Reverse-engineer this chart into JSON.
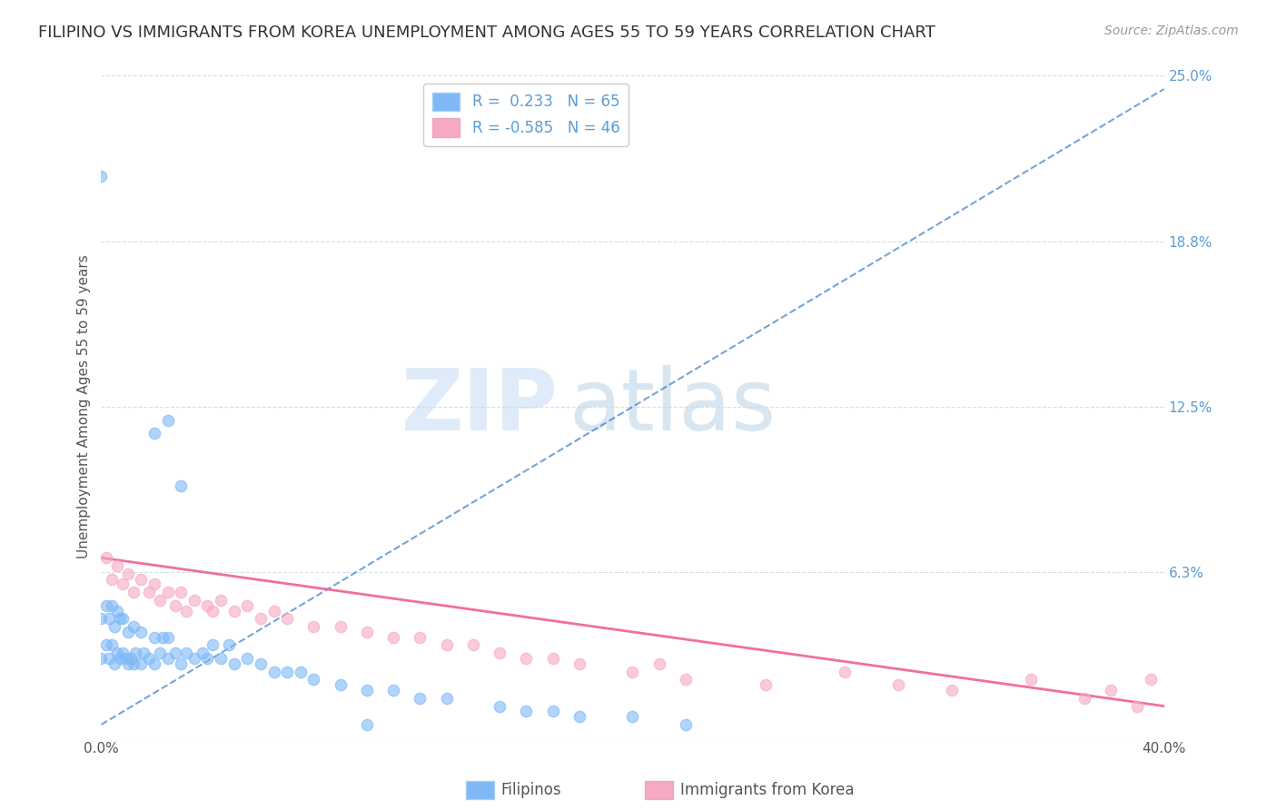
{
  "title": "FILIPINO VS IMMIGRANTS FROM KOREA UNEMPLOYMENT AMONG AGES 55 TO 59 YEARS CORRELATION CHART",
  "source": "Source: ZipAtlas.com",
  "ylabel": "Unemployment Among Ages 55 to 59 years",
  "xlim": [
    0.0,
    0.4
  ],
  "ylim": [
    0.0,
    0.25
  ],
  "yticks": [
    0.0,
    0.0625,
    0.125,
    0.1875,
    0.25
  ],
  "ytick_labels": [
    "",
    "6.3%",
    "12.5%",
    "18.8%",
    "25.0%"
  ],
  "xtick_labels_show": [
    "0.0%",
    "40.0%"
  ],
  "filipino_color": "#7eb8f7",
  "korean_color": "#f7a8c4",
  "trendline_color_filipino": "#7eb8f7",
  "trendline_color_korean": "#f06090",
  "R_filipino": 0.233,
  "N_filipino": 65,
  "R_korean": -0.585,
  "N_korean": 46,
  "watermark_zip": "ZIP",
  "watermark_atlas": "atlas",
  "legend_labels": [
    "Filipinos",
    "Immigrants from Korea"
  ],
  "background_color": "#ffffff",
  "grid_color": "#c8d8e8",
  "title_color": "#333333",
  "source_color": "#999999",
  "ytick_color": "#5b9bd5",
  "title_fontsize": 13,
  "axis_label_fontsize": 11,
  "tick_fontsize": 11,
  "legend_fontsize": 12,
  "fil_trendline_x0": 0.0,
  "fil_trendline_y0": 0.005,
  "fil_trendline_x1": 0.4,
  "fil_trendline_y1": 0.245,
  "kor_trendline_x0": 0.0,
  "kor_trendline_y0": 0.068,
  "kor_trendline_x1": 0.4,
  "kor_trendline_y1": 0.012,
  "filipinos_x": [
    0.0,
    0.0,
    0.002,
    0.002,
    0.003,
    0.003,
    0.004,
    0.004,
    0.005,
    0.005,
    0.006,
    0.006,
    0.007,
    0.007,
    0.008,
    0.008,
    0.009,
    0.01,
    0.01,
    0.011,
    0.012,
    0.012,
    0.013,
    0.015,
    0.015,
    0.016,
    0.018,
    0.02,
    0.02,
    0.022,
    0.023,
    0.025,
    0.025,
    0.028,
    0.03,
    0.032,
    0.035,
    0.038,
    0.04,
    0.042,
    0.045,
    0.048,
    0.05,
    0.055,
    0.06,
    0.065,
    0.07,
    0.075,
    0.08,
    0.09,
    0.1,
    0.11,
    0.12,
    0.13,
    0.15,
    0.16,
    0.17,
    0.18,
    0.2,
    0.22,
    0.02,
    0.025,
    0.03,
    0.0,
    0.1
  ],
  "filipinos_y": [
    0.03,
    0.045,
    0.035,
    0.05,
    0.03,
    0.045,
    0.035,
    0.05,
    0.028,
    0.042,
    0.032,
    0.048,
    0.03,
    0.045,
    0.032,
    0.045,
    0.03,
    0.028,
    0.04,
    0.03,
    0.028,
    0.042,
    0.032,
    0.028,
    0.04,
    0.032,
    0.03,
    0.028,
    0.038,
    0.032,
    0.038,
    0.03,
    0.038,
    0.032,
    0.028,
    0.032,
    0.03,
    0.032,
    0.03,
    0.035,
    0.03,
    0.035,
    0.028,
    0.03,
    0.028,
    0.025,
    0.025,
    0.025,
    0.022,
    0.02,
    0.018,
    0.018,
    0.015,
    0.015,
    0.012,
    0.01,
    0.01,
    0.008,
    0.008,
    0.005,
    0.115,
    0.12,
    0.095,
    0.212,
    0.005
  ],
  "koreans_x": [
    0.002,
    0.004,
    0.006,
    0.008,
    0.01,
    0.012,
    0.015,
    0.018,
    0.02,
    0.022,
    0.025,
    0.028,
    0.03,
    0.032,
    0.035,
    0.04,
    0.042,
    0.045,
    0.05,
    0.055,
    0.06,
    0.065,
    0.07,
    0.08,
    0.09,
    0.1,
    0.11,
    0.12,
    0.13,
    0.14,
    0.15,
    0.16,
    0.17,
    0.18,
    0.2,
    0.21,
    0.22,
    0.25,
    0.28,
    0.3,
    0.32,
    0.35,
    0.37,
    0.38,
    0.39,
    0.395
  ],
  "koreans_y": [
    0.068,
    0.06,
    0.065,
    0.058,
    0.062,
    0.055,
    0.06,
    0.055,
    0.058,
    0.052,
    0.055,
    0.05,
    0.055,
    0.048,
    0.052,
    0.05,
    0.048,
    0.052,
    0.048,
    0.05,
    0.045,
    0.048,
    0.045,
    0.042,
    0.042,
    0.04,
    0.038,
    0.038,
    0.035,
    0.035,
    0.032,
    0.03,
    0.03,
    0.028,
    0.025,
    0.028,
    0.022,
    0.02,
    0.025,
    0.02,
    0.018,
    0.022,
    0.015,
    0.018,
    0.012,
    0.022
  ]
}
